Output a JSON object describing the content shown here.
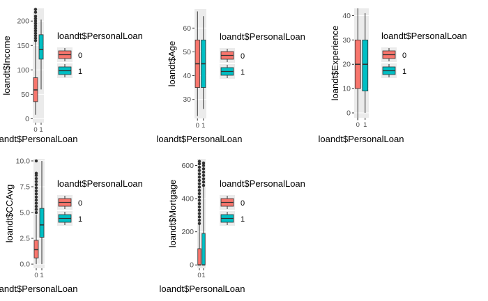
{
  "colors": {
    "level0": "#F8766D",
    "level1": "#00BFC4",
    "panel": "#EBEBEB",
    "grid": "#FFFFFF",
    "ink": "#333333",
    "outlier": "#333333"
  },
  "chart_data": [
    {
      "type": "box",
      "xlabel": "loandt$PersonalLoan",
      "ylabel": "loandt$Income",
      "categories": [
        "0",
        "1"
      ],
      "ylim": [
        -8,
        226
      ],
      "yticks": [
        "0",
        "50",
        "100",
        "150",
        "200"
      ],
      "legend": {
        "title": "loandt$PersonalLoan",
        "entries": [
          "0",
          "1"
        ],
        "position": "right"
      },
      "boxes": [
        {
          "category": "0",
          "min": 8,
          "q1": 35,
          "median": 59,
          "q3": 84,
          "max": 157,
          "outliers": [
            160,
            165,
            170,
            175,
            180,
            185,
            190,
            195,
            200,
            205,
            210,
            218,
            224
          ]
        },
        {
          "category": "1",
          "min": 60,
          "q1": 122,
          "median": 142,
          "q3": 172,
          "max": 203,
          "outliers": []
        }
      ]
    },
    {
      "type": "box",
      "xlabel": "loandt$PersonalLoan",
      "ylabel": "loandt$Age",
      "categories": [
        "0",
        "1"
      ],
      "ylim": [
        22,
        68
      ],
      "yticks": [
        "30",
        "40",
        "50",
        "60"
      ],
      "legend": {
        "title": "loandt$PersonalLoan",
        "entries": [
          "0",
          "1"
        ],
        "position": "right"
      },
      "boxes": [
        {
          "category": "0",
          "min": 23,
          "q1": 35,
          "median": 45,
          "q3": 55,
          "max": 67,
          "outliers": []
        },
        {
          "category": "1",
          "min": 26,
          "q1": 35,
          "median": 45,
          "q3": 55,
          "max": 65,
          "outliers": []
        }
      ]
    },
    {
      "type": "box",
      "xlabel": "loandt$PersonalLoan",
      "ylabel": "loandt$Experience",
      "categories": [
        "0",
        "1"
      ],
      "ylim": [
        -2,
        43
      ],
      "yticks": [
        "0",
        "10",
        "20",
        "30",
        "40"
      ],
      "legend": {
        "title": "loandt$PersonalLoan",
        "entries": [
          "0",
          "1"
        ],
        "position": "right"
      },
      "boxes": [
        {
          "category": "0",
          "min": -3,
          "q1": 10,
          "median": 20,
          "q3": 30,
          "max": 43,
          "outliers": []
        },
        {
          "category": "1",
          "min": 0,
          "q1": 9,
          "median": 20,
          "q3": 30,
          "max": 41,
          "outliers": []
        }
      ]
    },
    {
      "type": "box",
      "xlabel": "loandt$PersonalLoan",
      "ylabel": "loandt$CCAvg",
      "categories": [
        "0",
        "1"
      ],
      "ylim": [
        -0.4,
        10.2
      ],
      "yticks": [
        "0.0",
        "2.5",
        "5.0",
        "7.5",
        "10.0"
      ],
      "legend": {
        "title": "loandt$PersonalLoan",
        "entries": [
          "0",
          "1"
        ],
        "position": "right"
      },
      "boxes": [
        {
          "category": "0",
          "min": 0,
          "q1": 0.6,
          "median": 1.4,
          "q3": 2.3,
          "max": 4.8,
          "outliers": [
            5.0,
            5.3,
            5.6,
            5.9,
            6.2,
            6.5,
            6.8,
            7.1,
            7.4,
            7.7,
            8.0,
            8.3,
            8.6,
            8.8,
            10.0
          ]
        },
        {
          "category": "1",
          "min": 0,
          "q1": 2.6,
          "median": 3.8,
          "q3": 5.4,
          "max": 10.0,
          "outliers": []
        }
      ]
    },
    {
      "type": "box",
      "xlabel": "loandt$PersonalLoan",
      "ylabel": "loandt$Mortgage",
      "categories": [
        "0",
        "1"
      ],
      "ylim": [
        -20,
        640
      ],
      "yticks": [
        "0",
        "200",
        "400",
        "600"
      ],
      "legend": {
        "title": "loandt$PersonalLoan",
        "entries": [
          "0",
          "1"
        ],
        "position": "right"
      },
      "boxes": [
        {
          "category": "0",
          "min": 0,
          "q1": 0,
          "median": 0,
          "q3": 98,
          "max": 245,
          "outliers": [
            250,
            270,
            290,
            310,
            330,
            350,
            370,
            390,
            410,
            430,
            450,
            470,
            490,
            510,
            530,
            550,
            570,
            590,
            610,
            625
          ]
        },
        {
          "category": "1",
          "min": 0,
          "q1": 0,
          "median": 0,
          "q3": 190,
          "max": 470,
          "outliers": [
            480,
            500,
            520,
            540,
            560,
            580,
            600,
            615
          ]
        }
      ]
    }
  ]
}
